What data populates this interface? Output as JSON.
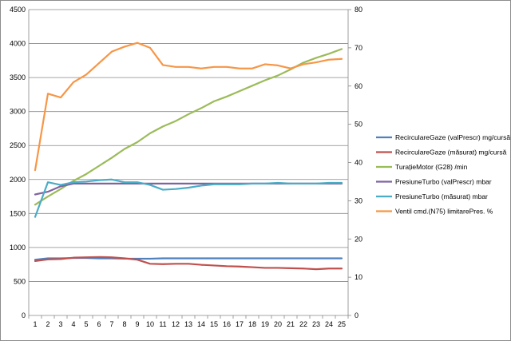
{
  "chart_data": {
    "type": "line",
    "title": "",
    "xlabel": "",
    "ylabel": "",
    "y2label": "",
    "grid": "horizontal gridlines on primary axis",
    "legend_position": "right",
    "x": [
      "1",
      "2",
      "3",
      "4",
      "5",
      "6",
      "7",
      "8",
      "9",
      "10",
      "11",
      "12",
      "13",
      "14",
      "15",
      "16",
      "17",
      "18",
      "19",
      "20",
      "21",
      "22",
      "23",
      "24",
      "25"
    ],
    "ylim": [
      0,
      4500
    ],
    "y_ticks": [
      "0",
      "500",
      "1000",
      "1500",
      "2000",
      "2500",
      "3000",
      "3500",
      "4000",
      "4500"
    ],
    "y2lim": [
      0,
      80
    ],
    "y2_ticks": [
      "0",
      "10",
      "20",
      "30",
      "40",
      "50",
      "60",
      "70",
      "80"
    ],
    "series": [
      {
        "name": "RecirculareGaze (valPrescr)  mg/cursă",
        "color": "#4F81BD",
        "axis": "left",
        "values": [
          820,
          840,
          840,
          845,
          845,
          840,
          840,
          835,
          835,
          835,
          840,
          840,
          840,
          840,
          840,
          840,
          840,
          840,
          840,
          840,
          840,
          840,
          840,
          840,
          840
        ]
      },
      {
        "name": "RecirculareGaze (măsurat)  mg/cursă",
        "color": "#C0504D",
        "axis": "left",
        "values": [
          800,
          825,
          830,
          850,
          855,
          860,
          855,
          840,
          820,
          760,
          755,
          760,
          760,
          745,
          735,
          725,
          720,
          710,
          700,
          700,
          695,
          690,
          680,
          690,
          690
        ]
      },
      {
        "name": "TurațieMotor (G28)  /min",
        "color": "#9BBB59",
        "axis": "left",
        "values": [
          1630,
          1750,
          1860,
          1980,
          2080,
          2200,
          2320,
          2450,
          2550,
          2680,
          2780,
          2860,
          2960,
          3050,
          3150,
          3220,
          3300,
          3380,
          3460,
          3530,
          3620,
          3720,
          3790,
          3850,
          3920
        ]
      },
      {
        "name": "PresiuneTurbo (valPrescr)  mbar",
        "color": "#8064A2",
        "axis": "left",
        "values": [
          1780,
          1820,
          1900,
          1940,
          1940,
          1940,
          1940,
          1940,
          1940,
          1940,
          1940,
          1940,
          1940,
          1940,
          1940,
          1940,
          1940,
          1940,
          1940,
          1940,
          1940,
          1940,
          1940,
          1940,
          1940
        ]
      },
      {
        "name": "PresiuneTurbo (măsurat)  mbar",
        "color": "#4BACC6",
        "axis": "left",
        "values": [
          1450,
          1960,
          1920,
          1960,
          1970,
          1990,
          2000,
          1960,
          1960,
          1920,
          1850,
          1860,
          1880,
          1910,
          1930,
          1930,
          1930,
          1940,
          1940,
          1950,
          1940,
          1940,
          1940,
          1950,
          1950
        ]
      },
      {
        "name": "Ventil cmd.(N75) limitarePres.  %",
        "color": "#F79646",
        "axis": "right",
        "values": [
          38,
          58,
          57,
          61,
          63,
          66,
          69,
          70.3,
          71.3,
          70,
          65.5,
          65,
          65,
          64.6,
          65,
          65,
          64.6,
          64.6,
          65.7,
          65.4,
          64.6,
          65.7,
          66.2,
          66.9,
          67.1
        ]
      }
    ]
  }
}
